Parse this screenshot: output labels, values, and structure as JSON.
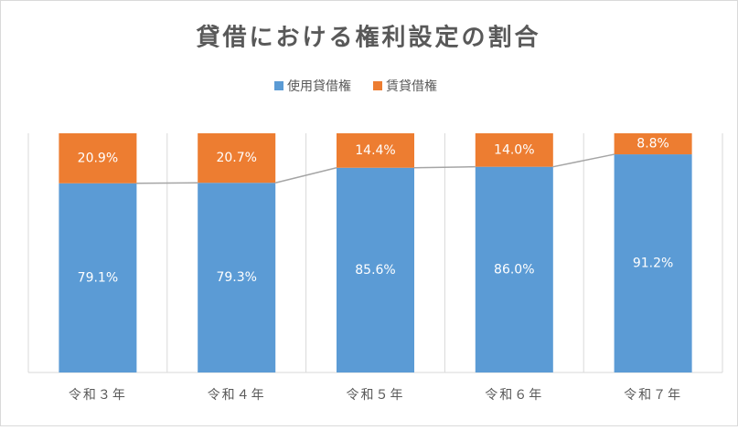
{
  "chart_data": {
    "type": "stacked_bar_100",
    "title": "貸借における権利設定の割合",
    "categories": [
      "令和３年",
      "令和４年",
      "令和５年",
      "令和６年",
      "令和７年"
    ],
    "series": [
      {
        "name": "使用貸借権",
        "color": "#5b9bd5",
        "values": [
          79.1,
          79.3,
          85.6,
          86.0,
          91.2
        ],
        "value_labels": [
          "79.1%",
          "79.3%",
          "85.6%",
          "86.0%",
          "91.2%"
        ]
      },
      {
        "name": "賃貸借権",
        "color": "#ed7d31",
        "values": [
          20.9,
          20.7,
          14.4,
          14.0,
          8.8
        ],
        "value_labels": [
          "20.9%",
          "20.7%",
          "14.4%",
          "14.0%",
          "8.8%"
        ]
      }
    ],
    "ylim": [
      0,
      100
    ],
    "legend": "top"
  }
}
